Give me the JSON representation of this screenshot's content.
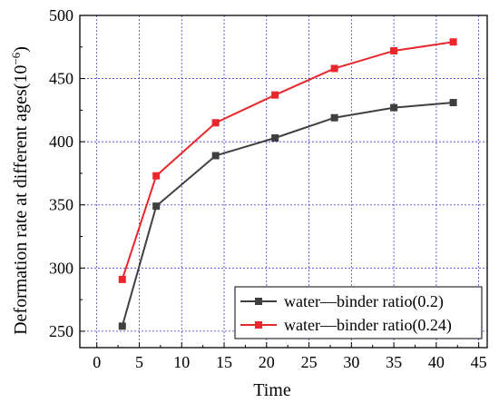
{
  "chart_data": {
    "type": "line",
    "xlabel": "Time",
    "ylabel": "Deformation rate at different ages(10",
    "ylabel_sup": "−6",
    "ylabel_tail": ")",
    "xlim": [
      -2,
      46
    ],
    "ylim": [
      237,
      500
    ],
    "x_ticks": [
      0,
      5,
      10,
      15,
      20,
      25,
      30,
      35,
      40,
      45
    ],
    "y_ticks": [
      250,
      300,
      350,
      400,
      450,
      500
    ],
    "grid": true,
    "legend_position": "bottom-right",
    "x": [
      3,
      7,
      14,
      21,
      28,
      35,
      42
    ],
    "series": [
      {
        "name": "water—binder ratio(0.2)",
        "color": "#3f3f3f",
        "marker": "square",
        "values": [
          254,
          349,
          389,
          403,
          419,
          427,
          431
        ]
      },
      {
        "name": "water—binder ratio(0.24)",
        "color": "#e8262b",
        "marker": "square",
        "values": [
          291,
          373,
          415,
          437,
          458,
          472,
          479
        ]
      }
    ]
  },
  "colors": {
    "grid": "#3a3ad0",
    "axis": "#000000"
  }
}
